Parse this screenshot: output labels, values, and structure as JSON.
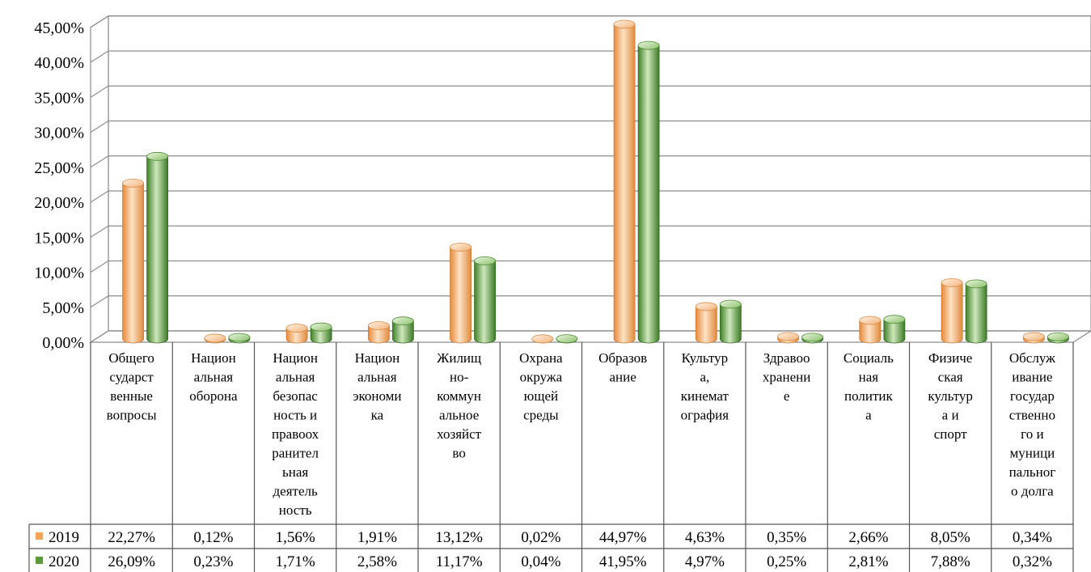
{
  "chart_data": {
    "type": "bar",
    "title": "",
    "xlabel": "",
    "ylabel": "",
    "ylim": [
      0,
      45
    ],
    "y_tick_step": 5,
    "y_tick_labels": [
      "0,00%",
      "5,00%",
      "10,00%",
      "15,00%",
      "20,00%",
      "25,00%",
      "30,00%",
      "35,00%",
      "40,00%",
      "45,00%"
    ],
    "grid": true,
    "legend": "data-table-left",
    "categories": [
      [
        "Общего",
        "сударст",
        "венные",
        "вопросы"
      ],
      [
        "Национ",
        "альная",
        "оборона"
      ],
      [
        "Национ",
        "альная",
        "безопас",
        "ность и",
        "правоох",
        "ранител",
        "ьная",
        "деятель",
        "ность"
      ],
      [
        "Национ",
        "альная",
        "экономи",
        "ка"
      ],
      [
        "Жилищ",
        "но-",
        "коммун",
        "альное",
        "хозяйст",
        "во"
      ],
      [
        "Охрана",
        "окружа",
        "ющей",
        "среды"
      ],
      [
        "Образов",
        "ание"
      ],
      [
        "Культур",
        "а,",
        "кинемат",
        "ография"
      ],
      [
        "Здравоо",
        "хранени",
        "е"
      ],
      [
        "Социаль",
        "ная",
        "политик",
        "а"
      ],
      [
        "Физиче",
        "ская",
        "культур",
        "а и",
        "спорт"
      ],
      [
        "Обслуж",
        "ивание",
        "государ",
        "ственно",
        "го и",
        "муници",
        "пальног",
        "о долга"
      ]
    ],
    "series": [
      {
        "name": "2019",
        "color": "#f5a55a",
        "values": [
          22.27,
          0.12,
          1.56,
          1.91,
          13.12,
          0.02,
          44.97,
          4.63,
          0.35,
          2.66,
          8.05,
          0.34
        ],
        "labels": [
          "22,27%",
          "0,12%",
          "1,56%",
          "1,91%",
          "13,12%",
          "0,02%",
          "44,97%",
          "4,63%",
          "0,35%",
          "2,66%",
          "8,05%",
          "0,34%"
        ]
      },
      {
        "name": "2020",
        "color": "#5a9a3c",
        "values": [
          26.09,
          0.23,
          1.71,
          2.58,
          11.17,
          0.04,
          41.95,
          4.97,
          0.25,
          2.81,
          7.88,
          0.32
        ],
        "labels": [
          "26,09%",
          "0,23%",
          "1,71%",
          "2,58%",
          "11,17%",
          "0,04%",
          "41,95%",
          "4,97%",
          "0,25%",
          "2,81%",
          "7,88%",
          "0,32%"
        ]
      }
    ]
  }
}
